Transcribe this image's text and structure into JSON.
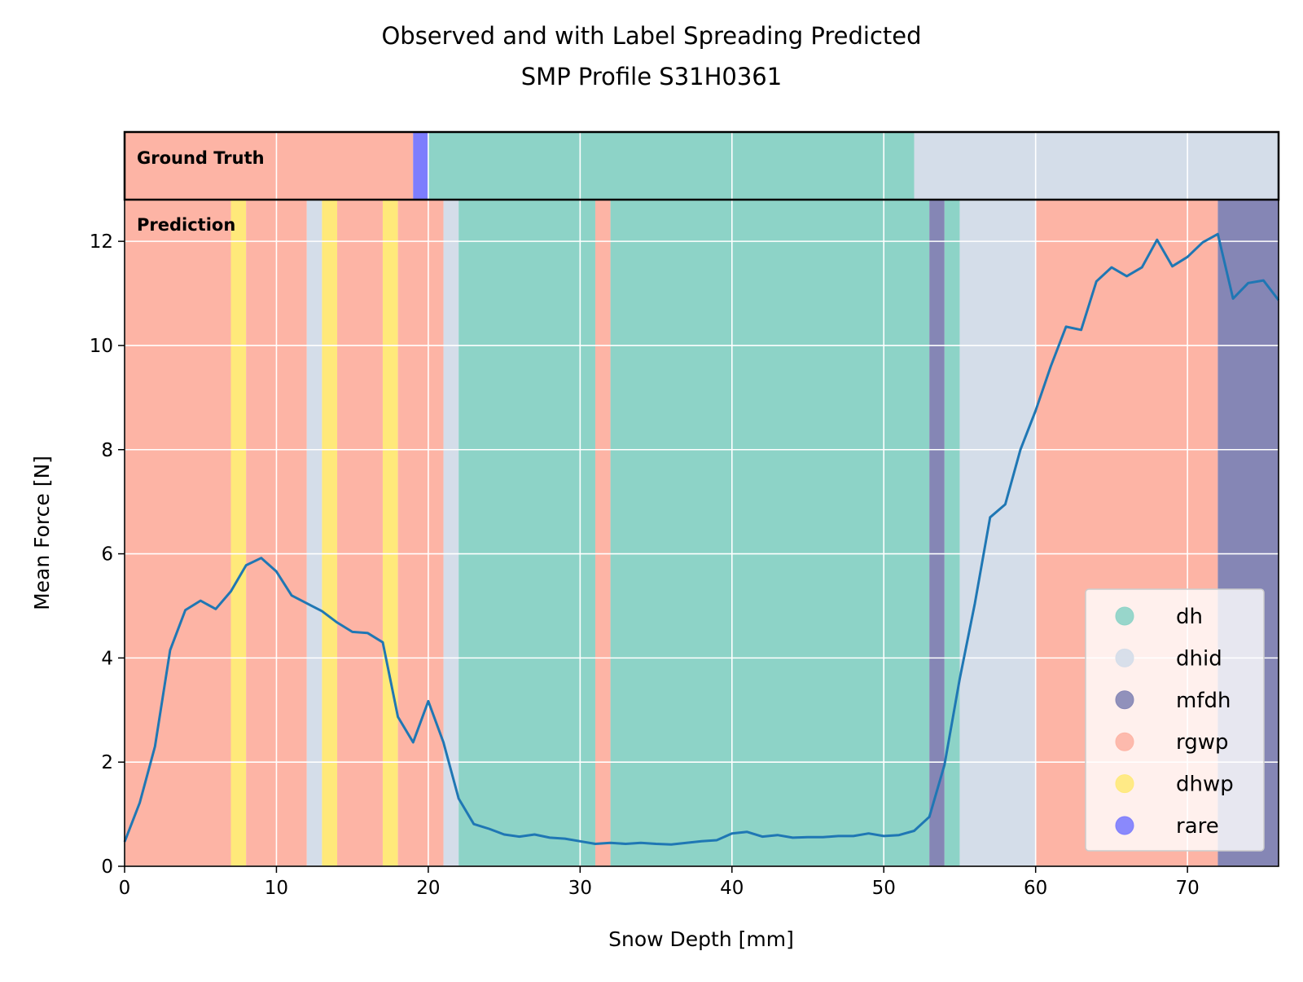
{
  "chart_data": {
    "type": "line",
    "title": "Observed and with Label Spreading Predicted",
    "subtitle": "SMP Profile S31H0361",
    "xlabel": "Snow Depth [mm]",
    "ylabel": "Mean Force [N]",
    "xlim": [
      0,
      76
    ],
    "ylim": [
      0,
      12.8
    ],
    "xticks": [
      0,
      10,
      20,
      30,
      40,
      50,
      60,
      70
    ],
    "yticks": [
      0,
      2,
      4,
      6,
      8,
      10,
      12
    ],
    "grid": true,
    "legend_position": "lower-right",
    "panel_labels": {
      "ground_truth": "Ground Truth",
      "prediction": "Prediction"
    },
    "line_color": "#1f77b4",
    "classes": [
      {
        "name": "dh",
        "color": "#8dd3c7"
      },
      {
        "name": "dhid",
        "color": "#d4dde9"
      },
      {
        "name": "mfdh",
        "color": "#8586b5"
      },
      {
        "name": "rgwp",
        "color": "#fdb4a5"
      },
      {
        "name": "dhwp",
        "color": "#ffe97a"
      },
      {
        "name": "rare",
        "color": "#7d7dfd"
      }
    ],
    "ground_truth_segments": [
      {
        "start": 0,
        "end": 19,
        "label": "rgwp"
      },
      {
        "start": 19,
        "end": 20,
        "label": "rare"
      },
      {
        "start": 20,
        "end": 52,
        "label": "dh"
      },
      {
        "start": 52,
        "end": 76,
        "label": "dhid"
      }
    ],
    "prediction_segments": [
      {
        "start": 0,
        "end": 7,
        "label": "rgwp"
      },
      {
        "start": 7,
        "end": 8,
        "label": "dhwp"
      },
      {
        "start": 8,
        "end": 12,
        "label": "rgwp"
      },
      {
        "start": 12,
        "end": 13,
        "label": "dhid"
      },
      {
        "start": 13,
        "end": 14,
        "label": "dhwp"
      },
      {
        "start": 14,
        "end": 17,
        "label": "rgwp"
      },
      {
        "start": 17,
        "end": 18,
        "label": "dhwp"
      },
      {
        "start": 18,
        "end": 21,
        "label": "rgwp"
      },
      {
        "start": 21,
        "end": 22,
        "label": "dhid"
      },
      {
        "start": 22,
        "end": 31,
        "label": "dh"
      },
      {
        "start": 31,
        "end": 32,
        "label": "rgwp"
      },
      {
        "start": 32,
        "end": 53,
        "label": "dh"
      },
      {
        "start": 53,
        "end": 54,
        "label": "mfdh"
      },
      {
        "start": 54,
        "end": 55,
        "label": "dh"
      },
      {
        "start": 55,
        "end": 60,
        "label": "dhid"
      },
      {
        "start": 60,
        "end": 72,
        "label": "rgwp"
      },
      {
        "start": 72,
        "end": 76,
        "label": "mfdh"
      }
    ],
    "series": [
      {
        "x": [
          0,
          1,
          2,
          3,
          4,
          5,
          6,
          7,
          8,
          9,
          10,
          11,
          12,
          13,
          14,
          15,
          16,
          17,
          18,
          19,
          20,
          21,
          22,
          23,
          24,
          25,
          26,
          27,
          28,
          29,
          30,
          31,
          32,
          33,
          34,
          35,
          36,
          37,
          38,
          39,
          40,
          41,
          42,
          43,
          44,
          45,
          46,
          47,
          48,
          49,
          50,
          51,
          52,
          53,
          54,
          55,
          56,
          57,
          58,
          59,
          60,
          61,
          62,
          63,
          64,
          65,
          66,
          67,
          68,
          69,
          70,
          71,
          72,
          73,
          74,
          75,
          76
        ],
        "values": [
          0.47,
          1.22,
          2.3,
          4.15,
          4.92,
          5.1,
          4.94,
          5.28,
          5.78,
          5.92,
          5.66,
          5.2,
          5.05,
          4.9,
          4.68,
          4.5,
          4.48,
          4.3,
          2.87,
          2.38,
          3.17,
          2.38,
          1.3,
          0.81,
          0.72,
          0.61,
          0.57,
          0.61,
          0.55,
          0.53,
          0.48,
          0.43,
          0.45,
          0.43,
          0.45,
          0.43,
          0.42,
          0.45,
          0.48,
          0.5,
          0.63,
          0.66,
          0.57,
          0.6,
          0.55,
          0.56,
          0.56,
          0.58,
          0.58,
          0.63,
          0.58,
          0.6,
          0.68,
          0.95,
          1.95,
          3.6,
          5.05,
          6.7,
          6.95,
          8.0,
          8.75,
          9.6,
          10.36,
          10.3,
          11.23,
          11.5,
          11.33,
          11.5,
          12.03,
          11.52,
          11.7,
          11.98,
          12.14,
          10.9,
          11.2,
          11.25,
          10.87
        ]
      }
    ]
  }
}
